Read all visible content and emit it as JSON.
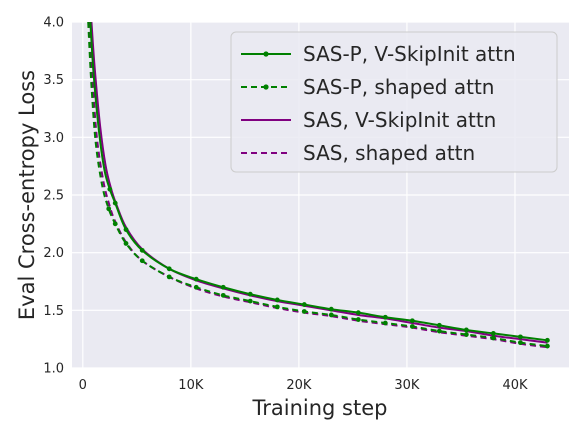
{
  "chart_data": {
    "type": "line",
    "xlabel": "Training step",
    "ylabel": "Eval Cross-entropy Loss",
    "xlim": [
      -1000,
      45000
    ],
    "ylim": [
      1.0,
      4.0
    ],
    "xticks": [
      0,
      10000,
      20000,
      30000,
      40000
    ],
    "xtick_labels": [
      "0",
      "10K",
      "20K",
      "30K",
      "40K"
    ],
    "yticks": [
      1.0,
      1.5,
      2.0,
      2.5,
      3.0,
      3.5,
      4.0
    ],
    "ytick_labels": [
      "1.0",
      "1.5",
      "2.0",
      "2.5",
      "3.0",
      "3.5",
      "4.0"
    ],
    "grid": true,
    "background": "#eaeaf2",
    "legend_position": "top-right",
    "series": [
      {
        "name": "SAS-P, V-SkipInit attn",
        "color": "#008000",
        "dash": "solid",
        "marker": true,
        "x": [
          700,
          1000,
          1500,
          2000,
          2500,
          3000,
          4000,
          5500,
          8000,
          10500,
          13000,
          15500,
          18000,
          20500,
          23000,
          25500,
          28000,
          30500,
          33000,
          35500,
          38000,
          40500,
          43000
        ],
        "y": [
          4.0,
          3.55,
          3.05,
          2.72,
          2.55,
          2.43,
          2.2,
          2.02,
          1.86,
          1.77,
          1.7,
          1.64,
          1.59,
          1.55,
          1.51,
          1.48,
          1.44,
          1.41,
          1.37,
          1.33,
          1.3,
          1.27,
          1.24
        ]
      },
      {
        "name": "SAS-P, shaped attn",
        "color": "#008000",
        "dash": "dashed",
        "marker": true,
        "x": [
          500,
          800,
          1200,
          1800,
          2400,
          3000,
          4000,
          5500,
          8000,
          10500,
          13000,
          15500,
          18000,
          20500,
          23000,
          25500,
          28000,
          30500,
          33000,
          35500,
          38000,
          40500,
          43000
        ],
        "y": [
          4.0,
          3.45,
          2.95,
          2.58,
          2.38,
          2.25,
          2.08,
          1.93,
          1.79,
          1.7,
          1.63,
          1.58,
          1.53,
          1.49,
          1.46,
          1.42,
          1.39,
          1.36,
          1.32,
          1.29,
          1.26,
          1.22,
          1.19
        ]
      },
      {
        "name": "SAS, V-SkipInit attn",
        "color": "#800080",
        "dash": "solid",
        "marker": false,
        "x": [
          800,
          1100,
          1600,
          2100,
          2600,
          3100,
          4000,
          5500,
          8000,
          10500,
          13000,
          15500,
          18000,
          20500,
          23000,
          25500,
          28000,
          30500,
          33000,
          35500,
          38000,
          40500,
          43000
        ],
        "y": [
          4.0,
          3.6,
          3.1,
          2.76,
          2.56,
          2.42,
          2.22,
          2.03,
          1.86,
          1.76,
          1.69,
          1.63,
          1.58,
          1.54,
          1.5,
          1.46,
          1.43,
          1.39,
          1.35,
          1.32,
          1.28,
          1.25,
          1.22
        ]
      },
      {
        "name": "SAS, shaped attn",
        "color": "#800080",
        "dash": "dashed",
        "marker": false,
        "x": [
          600,
          900,
          1300,
          1900,
          2500,
          3000,
          4000,
          5500,
          8000,
          10500,
          13000,
          15500,
          18000,
          20500,
          23000,
          25500,
          28000,
          30500,
          33000,
          35500,
          38000,
          40500,
          43000
        ],
        "y": [
          4.0,
          3.5,
          3.0,
          2.62,
          2.4,
          2.27,
          2.09,
          1.93,
          1.79,
          1.69,
          1.62,
          1.57,
          1.52,
          1.48,
          1.45,
          1.41,
          1.38,
          1.35,
          1.31,
          1.28,
          1.25,
          1.21,
          1.18
        ]
      }
    ]
  }
}
